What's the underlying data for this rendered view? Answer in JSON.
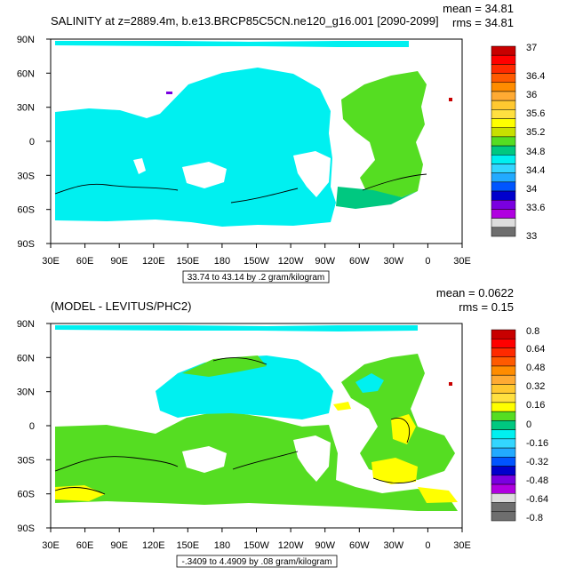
{
  "chart_data": [
    {
      "type": "heatmap",
      "title": "SALINITY at z=2889.4m, b.e13.BRCP85C5CN.ne120_g16.001 [2090-2099]",
      "stats": [
        "mean = 34.81",
        "rms = 34.81"
      ],
      "x_tick_labels": [
        "30E",
        "60E",
        "90E",
        "120E",
        "150E",
        "180",
        "150W",
        "120W",
        "90W",
        "60W",
        "30W",
        "0",
        "30E"
      ],
      "y_tick_labels": [
        "90N",
        "60N",
        "30N",
        "0",
        "30S",
        "60S",
        "90S"
      ],
      "colorbar_levels": [
        "37",
        "36.4",
        "36",
        "35.6",
        "35.2",
        "34.8",
        "34.4",
        "34",
        "33.6",
        "33"
      ],
      "colorbar_values": [
        37,
        36.8,
        36.6,
        36.4,
        36.2,
        36,
        35.8,
        35.6,
        35.4,
        35.2,
        35,
        34.8,
        34.6,
        34.4,
        34.2,
        34,
        33.8,
        33.6,
        33.4,
        33.2,
        33
      ],
      "colorbar_colors": [
        "#c80000",
        "#ff0000",
        "#ff2a00",
        "#ff5a00",
        "#ff8c00",
        "#ffaa33",
        "#ffc830",
        "#ffe040",
        "#ffff00",
        "#c8e000",
        "#55dd22",
        "#00c880",
        "#00f0f0",
        "#33d6ff",
        "#22aaff",
        "#0055ff",
        "#0000cc",
        "#7a00e0",
        "#b000e0",
        "#dddddd",
        "#6e6e6e"
      ],
      "caption": "33.74 to 43.14 by .2 gram/kilogram",
      "dominant_values": {
        "pacific_indian": 34.7,
        "atlantic": 34.9
      }
    },
    {
      "type": "heatmap",
      "title": "(MODEL - LEVITUS/PHC2)",
      "stats": [
        "mean = 0.0622",
        "rms = 0.15"
      ],
      "x_tick_labels": [
        "30E",
        "60E",
        "90E",
        "120E",
        "150E",
        "180",
        "150W",
        "120W",
        "90W",
        "60W",
        "30W",
        "0",
        "30E"
      ],
      "y_tick_labels": [
        "90N",
        "60N",
        "30N",
        "0",
        "30S",
        "60S",
        "90S"
      ],
      "colorbar_levels": [
        "0.8",
        "0.64",
        "0.48",
        "0.32",
        "0.16",
        "0",
        "-0.16",
        "-0.32",
        "-0.48",
        "-0.64",
        "-0.8"
      ],
      "colorbar_values": [
        0.8,
        0.72,
        0.64,
        0.56,
        0.48,
        0.4,
        0.32,
        0.24,
        0.16,
        0.08,
        0,
        -0.08,
        -0.16,
        -0.24,
        -0.32,
        -0.4,
        -0.48,
        -0.56,
        -0.64,
        -0.72,
        -0.8
      ],
      "colorbar_colors": [
        "#c80000",
        "#ff0000",
        "#ff2a00",
        "#ff5a00",
        "#ff8c00",
        "#ffaa33",
        "#ffc830",
        "#ffe040",
        "#ffff00",
        "#55dd22",
        "#00c880",
        "#00f0f0",
        "#33d6ff",
        "#22aaff",
        "#0055ff",
        "#0000cc",
        "#7a00e0",
        "#b000e0",
        "#dddddd",
        "#6e6e6e",
        "#6e6e6e"
      ],
      "caption": "-.3409 to 4.4909 by .08 gram/kilogram",
      "dominant_values": {
        "north_pacific": -0.1,
        "southern_ocean": 0.05,
        "atlantic": 0.05
      }
    }
  ]
}
